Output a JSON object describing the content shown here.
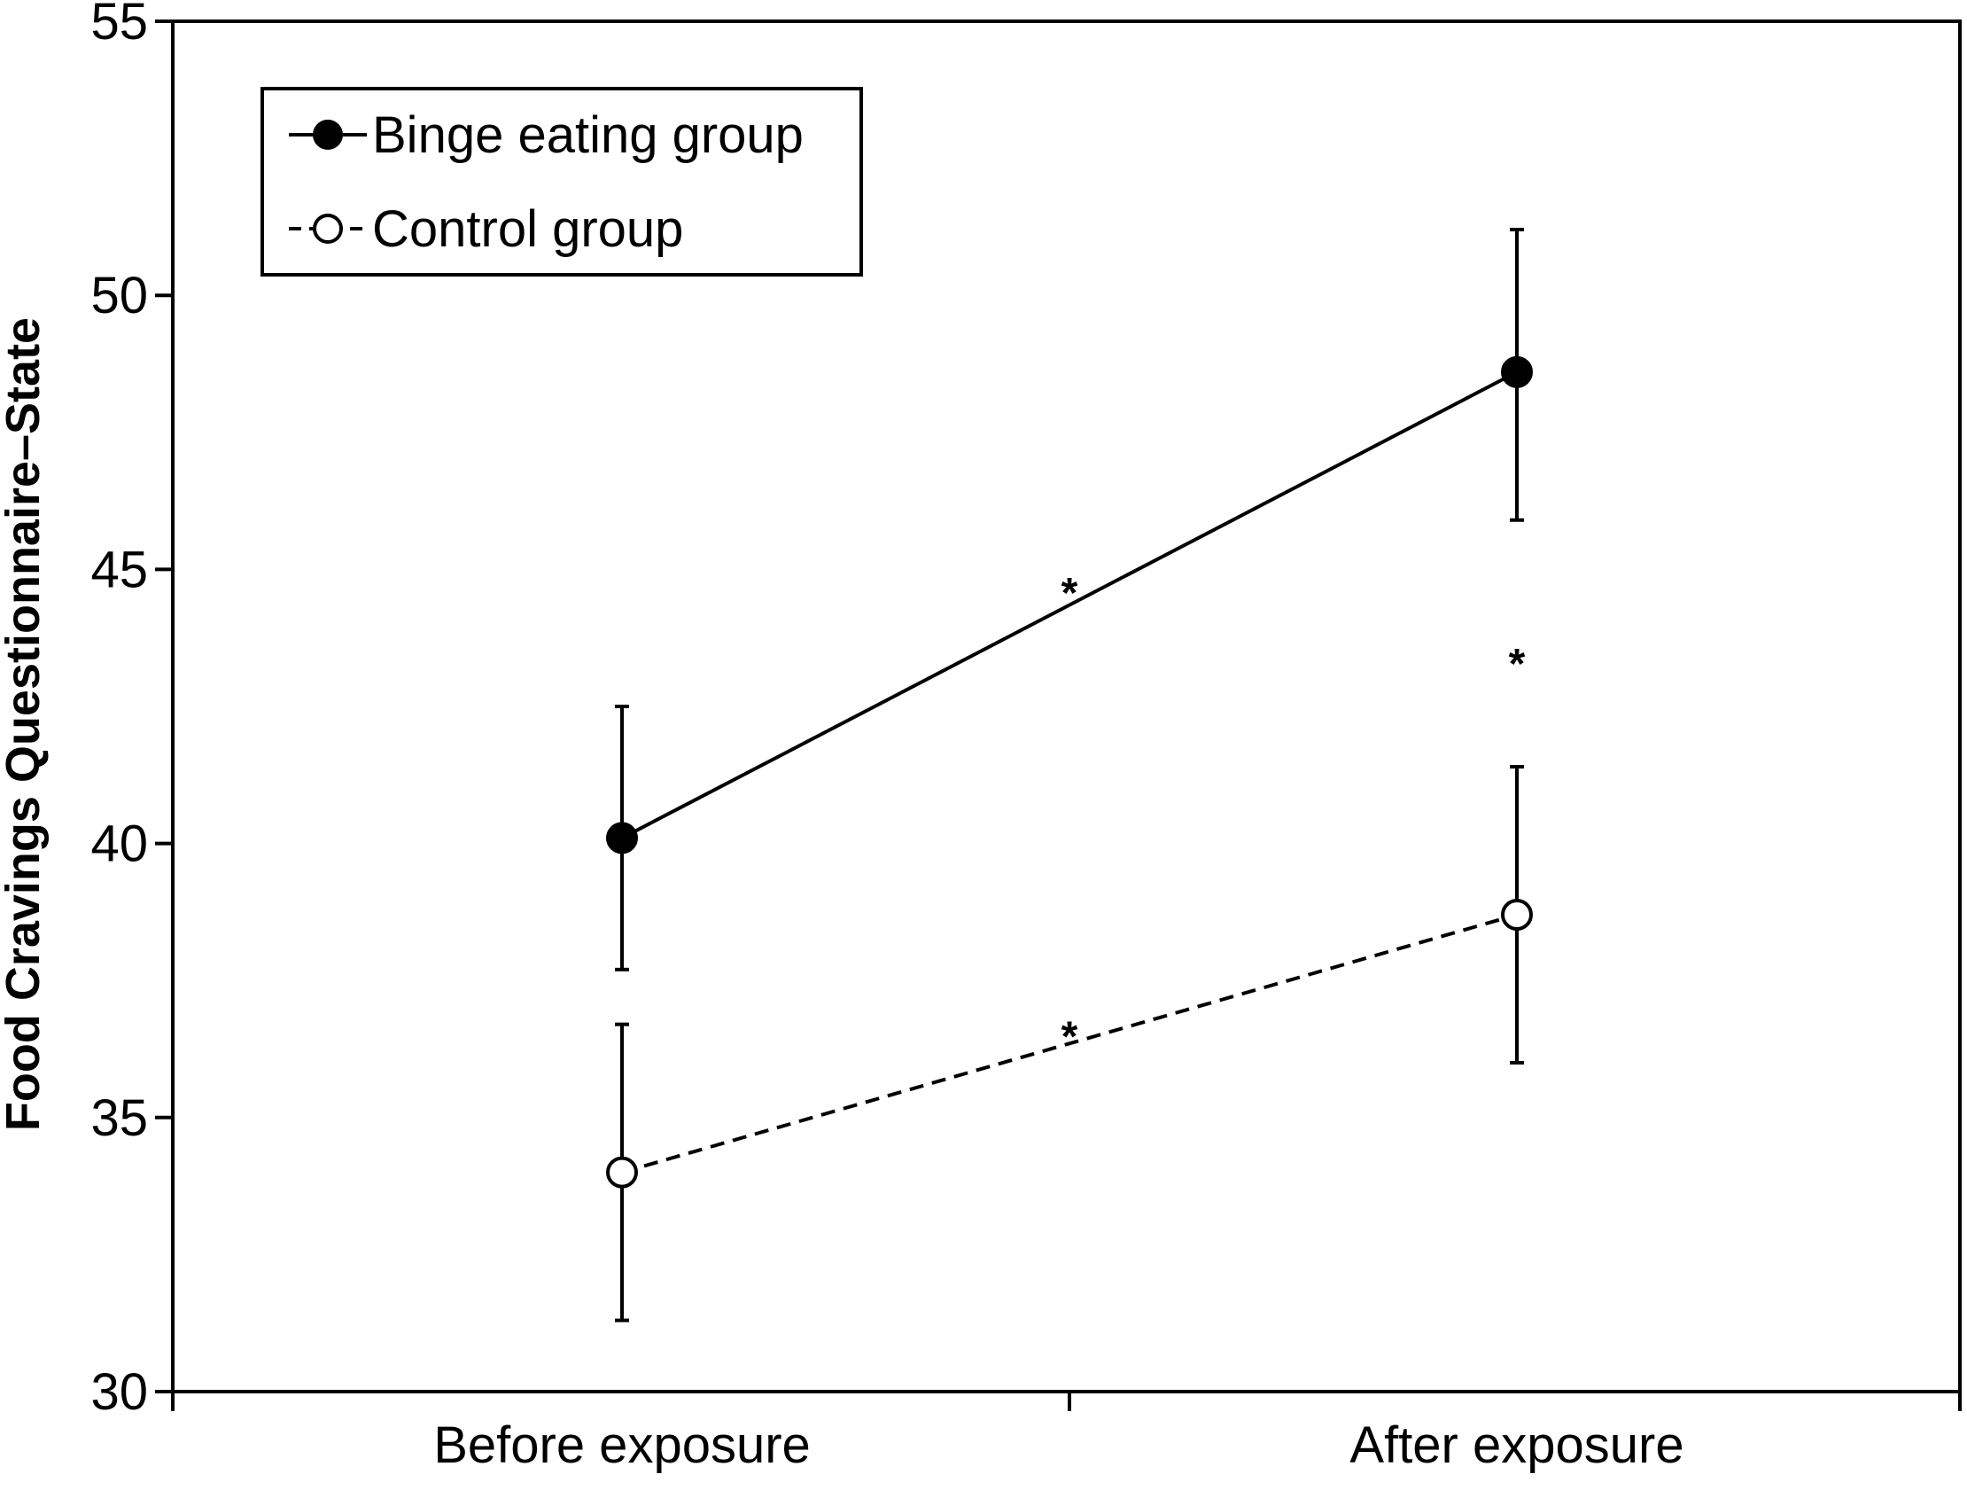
{
  "chart_data": {
    "type": "line",
    "title": "",
    "xlabel": "",
    "ylabel": "Food Cravings Questionnaire–State",
    "categories": [
      "Before exposure",
      "After exposure"
    ],
    "ylim": [
      30,
      55
    ],
    "yticks": [
      30,
      35,
      40,
      45,
      50,
      55
    ],
    "grid": false,
    "legend_position": "top-left",
    "series": [
      {
        "name": "Binge eating group",
        "values": [
          40.1,
          48.6
        ],
        "error_low": [
          37.7,
          45.9
        ],
        "error_high": [
          42.5,
          51.2
        ],
        "marker": "filled-circle",
        "line_style": "solid",
        "color": "#000000"
      },
      {
        "name": "Control group",
        "values": [
          34.0,
          38.7
        ],
        "error_low": [
          31.3,
          36.0
        ],
        "error_high": [
          36.7,
          41.4
        ],
        "marker": "open-circle",
        "line_style": "dashed",
        "color": "#000000"
      }
    ],
    "annotations": [
      {
        "text": "*",
        "x": 0.5,
        "y": 44.8
      },
      {
        "text": "*",
        "x": 1.0,
        "y": 43.5
      },
      {
        "text": "*",
        "x": 0.5,
        "y": 36.7
      }
    ]
  }
}
